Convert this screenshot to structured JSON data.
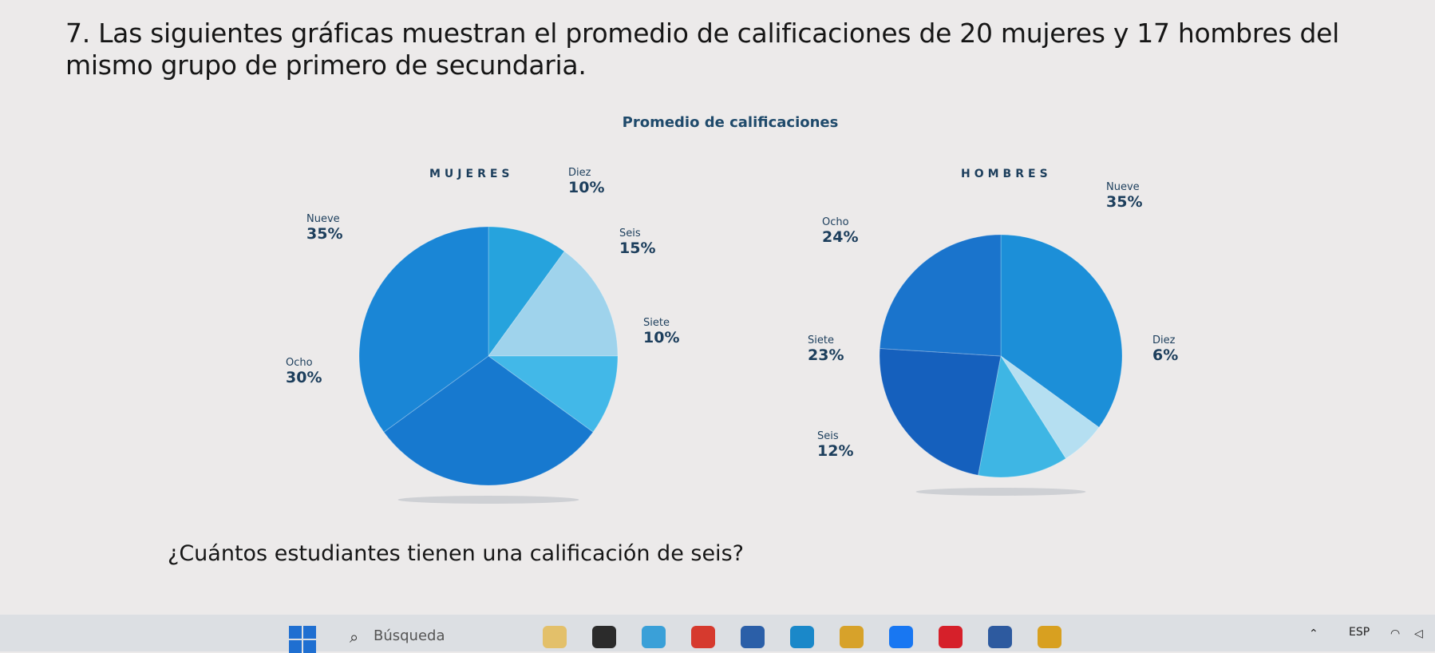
{
  "question": {
    "title": "7. Las siguientes gráficas muestran el promedio de calificaciones de 20 mujeres y 17 hombres del mismo grupo de primero de secundaria.",
    "prompt": "¿Cuántos estudiantes tienen una calificación de seis?"
  },
  "chart_data": [
    {
      "type": "pie",
      "title": "Promedio de calificaciones",
      "heading": "MUJERES",
      "slices": [
        {
          "label": "Diez",
          "value": 10,
          "display": "10%",
          "color": "#26a3dd"
        },
        {
          "label": "Seis",
          "value": 15,
          "display": "15%",
          "color": "#9fd3ec"
        },
        {
          "label": "Siete",
          "value": 10,
          "display": "10%",
          "color": "#42b8e8"
        },
        {
          "label": "Ocho",
          "value": 30,
          "display": "30%",
          "color": "#1779cf"
        },
        {
          "label": "Nueve",
          "value": 35,
          "display": "35%",
          "color": "#1a86d6"
        }
      ]
    },
    {
      "type": "pie",
      "title": "Promedio de calificaciones",
      "heading": "HOMBRES",
      "slices": [
        {
          "label": "Nueve",
          "value": 35,
          "display": "35%",
          "color": "#1c8fd8"
        },
        {
          "label": "Diez",
          "value": 6,
          "display": "6%",
          "color": "#b5dff1"
        },
        {
          "label": "Seis",
          "value": 12,
          "display": "12%",
          "color": "#3eb6e4"
        },
        {
          "label": "Siete",
          "value": 23,
          "display": "23%",
          "color": "#1560bd"
        },
        {
          "label": "Ocho",
          "value": 24,
          "display": "24%",
          "color": "#1a74cc"
        }
      ]
    }
  ],
  "taskbar": {
    "search_placeholder": "Búsqueda",
    "language": "ESP",
    "start_icon": "windows-start-icon",
    "search_icon": "magnifier-icon",
    "app_colors": [
      "#e3c06a",
      "#2b2b2b",
      "#3aa0d8",
      "#d63a2e",
      "#2b5fa8",
      "#1a88c9",
      "#d7a22a",
      "#1877f2",
      "#d6202a",
      "#2d5a9f",
      "#d8a020"
    ]
  }
}
